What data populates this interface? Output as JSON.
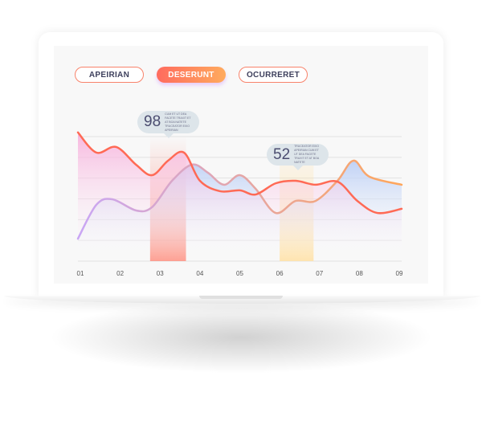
{
  "buttons": [
    {
      "label": "APEIRIAN",
      "active": false
    },
    {
      "label": "DESERUNT",
      "active": true
    },
    {
      "label": "OCURRERET",
      "active": false
    }
  ],
  "chart_data": {
    "type": "line",
    "categories": [
      "01",
      "02",
      "03",
      "04",
      "05",
      "06",
      "07",
      "08",
      "09"
    ],
    "ylim": [
      0,
      60
    ],
    "grid": true,
    "series": [
      {
        "color": "#ff6a55",
        "fill": "#f7a6d8",
        "points": [
          [
            0.94,
            62
          ],
          [
            1.4,
            52.3
          ],
          [
            1.9,
            55
          ],
          [
            2.4,
            46.4
          ],
          [
            2.8,
            41.4
          ],
          [
            3.2,
            48.4
          ],
          [
            3.6,
            52.3
          ],
          [
            4.0,
            38.7
          ],
          [
            4.5,
            33.7
          ],
          [
            5.0,
            34.1
          ],
          [
            5.4,
            32.1
          ],
          [
            5.9,
            37.5
          ],
          [
            6.4,
            38.7
          ],
          [
            6.9,
            36.8
          ],
          [
            7.45,
            38.3
          ],
          [
            7.95,
            29
          ],
          [
            8.45,
            23.2
          ],
          [
            9.06,
            25.2
          ]
        ]
      },
      {
        "color_start": "#c9a6f5",
        "color_end": "#ffa65a",
        "fill": "#b9cdf5",
        "points": [
          [
            0.94,
            10.8
          ],
          [
            1.4,
            27.1
          ],
          [
            1.8,
            29.8
          ],
          [
            2.4,
            24.4
          ],
          [
            2.8,
            26
          ],
          [
            3.3,
            38.7
          ],
          [
            3.8,
            46.5
          ],
          [
            4.2,
            42.6
          ],
          [
            4.6,
            36.8
          ],
          [
            5.0,
            41.4
          ],
          [
            5.4,
            34.8
          ],
          [
            5.9,
            23.2
          ],
          [
            6.4,
            29
          ],
          [
            6.9,
            29
          ],
          [
            7.45,
            38.7
          ],
          [
            7.85,
            48.4
          ],
          [
            8.25,
            40.7
          ],
          [
            9.06,
            36.8
          ]
        ]
      }
    ],
    "highlights": [
      {
        "from": 2.75,
        "to": 3.65,
        "color": "#ff8a7a"
      },
      {
        "from": 6.0,
        "to": 6.85,
        "color": "#ffe2a8"
      }
    ],
    "annotations": [
      {
        "value": "98",
        "text": "CUM ET UT DEA FACETE TRAXIT ET AT BOA NATETE TRUCEATOR EXIO APEIRIAN"
      },
      {
        "value": "52",
        "text": "TRUCEATOR EXIO APEIRIAN CUM ET UT DEA FACETE TRAXIT ET AT BOA NATETE"
      }
    ]
  }
}
